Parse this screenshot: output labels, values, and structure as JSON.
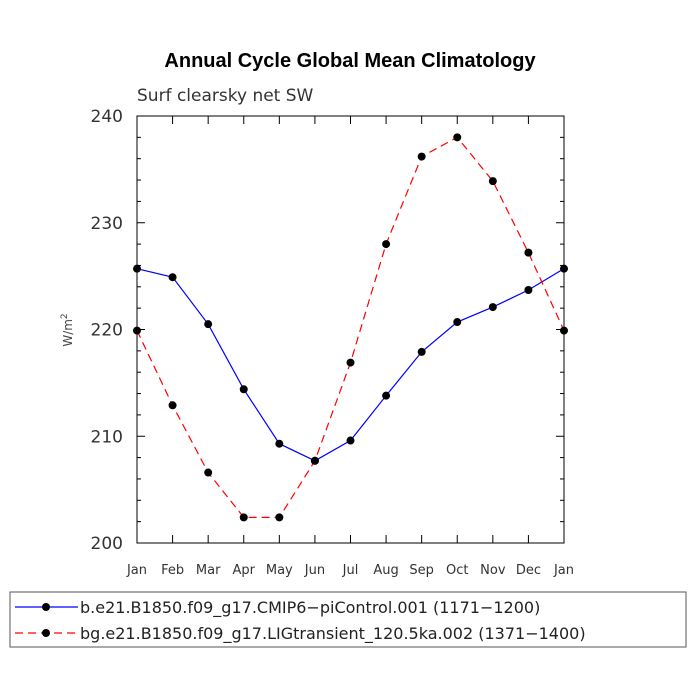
{
  "chart_data": {
    "type": "line",
    "title": "Annual Cycle Global Mean Climatology",
    "subtitle": "Surf clearsky net SW",
    "ylabel": "W/m",
    "ylabel_sup": "2",
    "xlabel": "",
    "categories": [
      "Jan",
      "Feb",
      "Mar",
      "Apr",
      "May",
      "Jun",
      "Jul",
      "Aug",
      "Sep",
      "Oct",
      "Nov",
      "Dec",
      "Jan"
    ],
    "ylim": [
      200,
      240
    ],
    "yticks": [
      200,
      210,
      220,
      230,
      240
    ],
    "grid": false,
    "legend_position": "bottom",
    "series": [
      {
        "name": "b.e21.B1850.f09_g17.CMIP6−piControl.001 (1171−1200)",
        "color": "#0000ff",
        "style": "solid",
        "values": [
          225.7,
          224.9,
          220.5,
          214.4,
          209.3,
          207.7,
          209.6,
          213.8,
          217.9,
          220.7,
          222.1,
          223.7,
          225.7
        ]
      },
      {
        "name": "bg.e21.B1850.f09_g17.LIGtransient_120.5ka.002 (1371−1400)",
        "color": "#ff0000",
        "style": "dashed",
        "values": [
          219.9,
          212.9,
          206.6,
          202.4,
          202.4,
          207.7,
          216.9,
          228.0,
          236.2,
          238.0,
          233.9,
          227.2,
          219.9
        ]
      }
    ]
  }
}
